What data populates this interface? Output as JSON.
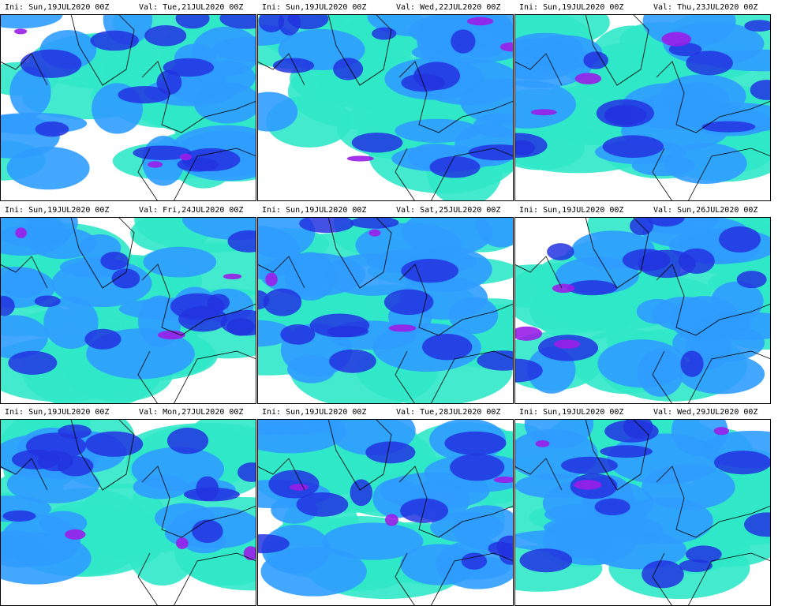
{
  "panels": [
    {
      "ini": "Ini: Sun,19JUL2020 00Z",
      "val": "Val: Tue,21JUL2020 00Z"
    },
    {
      "ini": "Ini: Sun,19JUL2020 00Z",
      "val": "Val: Wed,22JUL2020 00Z"
    },
    {
      "ini": "Ini: Sun,19JUL2020 00Z",
      "val": "Val: Thu,23JUL2020 00Z"
    },
    {
      "ini": "Ini: Sun,19JUL2020 00Z",
      "val": "Val: Fri,24JUL2020 00Z"
    },
    {
      "ini": "Ini: Sun,19JUL2020 00Z",
      "val": "Val: Sat,25JUL2020 00Z"
    },
    {
      "ini": "Ini: Sun,19JUL2020 00Z",
      "val": "Val: Sun,26JUL2020 00Z"
    },
    {
      "ini": "Ini: Sun,19JUL2020 00Z",
      "val": "Val: Mon,27JUL2020 00Z"
    },
    {
      "ini": "Ini: Sun,19JUL2020 00Z",
      "val": "Val: Tue,28JUL2020 00Z"
    },
    {
      "ini": "Ini: Sun,19JUL2020 00Z",
      "val": "Val: Wed,29JUL2020 00Z"
    }
  ]
}
